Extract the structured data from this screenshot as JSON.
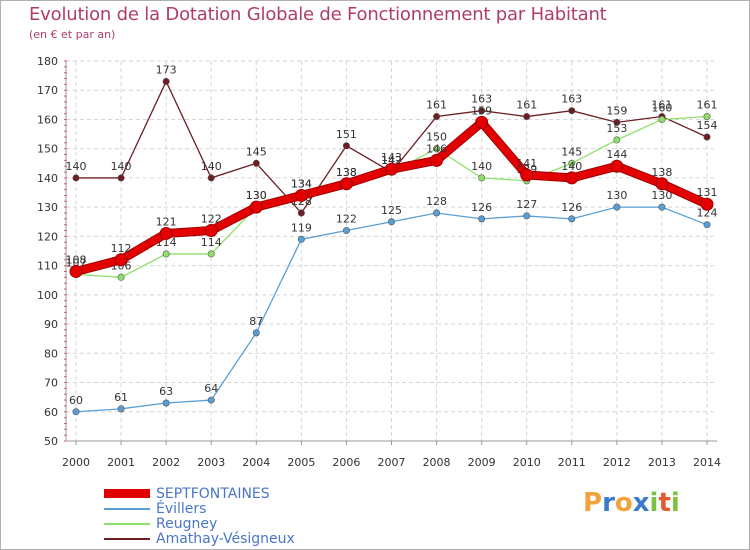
{
  "title": "Evolution de la Dotation Globale de Fonctionnement par Habitant",
  "subtitle": "(en € et par an)",
  "chart_data": {
    "type": "line",
    "x": [
      "2000",
      "2001",
      "2002",
      "2003",
      "2004",
      "2005",
      "2006",
      "2007",
      "2008",
      "2009",
      "2010",
      "2011",
      "2012",
      "2013",
      "2014"
    ],
    "ylim": [
      50,
      180
    ],
    "yticks": [
      50,
      60,
      70,
      80,
      90,
      100,
      110,
      120,
      130,
      140,
      150,
      160,
      170,
      180
    ],
    "grid": true,
    "series": [
      {
        "name": "Amathay-Vésigneux",
        "color": "#6b1f23",
        "values": [
          140,
          140,
          173,
          140,
          145,
          128,
          151,
          142,
          161,
          163,
          161,
          163,
          159,
          161,
          154
        ]
      },
      {
        "name": "Reugney",
        "color": "#8ee06a",
        "values": [
          107,
          106,
          114,
          114,
          130,
          134,
          138,
          142,
          150,
          140,
          139,
          145,
          153,
          160,
          161
        ]
      },
      {
        "name": "Évillers",
        "color": "#5a9fd4",
        "values": [
          60,
          61,
          63,
          64,
          87,
          119,
          122,
          125,
          128,
          126,
          127,
          126,
          130,
          130,
          124
        ]
      },
      {
        "name": "SEPTFONTAINES",
        "color": "#e30000",
        "values": [
          108,
          112,
          121,
          122,
          130,
          134,
          138,
          143,
          146,
          159,
          141,
          140,
          144,
          138,
          131
        ]
      }
    ]
  },
  "legend": [
    {
      "label": "SEPTFONTAINES",
      "color": "#e30000",
      "thick": true
    },
    {
      "label": "Évillers",
      "color": "#5a9fd4",
      "thick": false
    },
    {
      "label": "Reugney",
      "color": "#8ee06a",
      "thick": false
    },
    {
      "label": "Amathay-Vésigneux",
      "color": "#6b1f23",
      "thick": false
    }
  ],
  "logo": {
    "text": "Proxiti",
    "letters": [
      "P",
      "r",
      "o",
      "x",
      "i",
      "t",
      "i"
    ],
    "colors": [
      "#f2a23a",
      "#3d7ccc",
      "#f2a23a",
      "#3d7ccc",
      "#7cc142",
      "#e45b2e",
      "#7cc142"
    ]
  }
}
